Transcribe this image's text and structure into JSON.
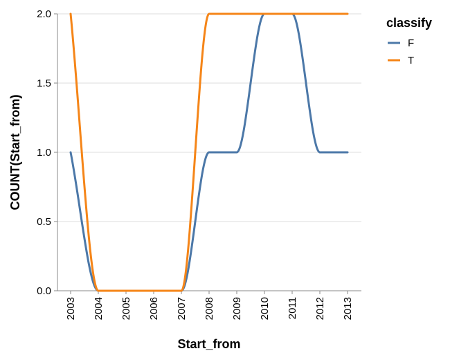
{
  "chart_data": {
    "type": "line",
    "xlabel": "Start_from",
    "ylabel": "COUNT(Start_from)",
    "x": [
      "2003",
      "2004",
      "2005",
      "2006",
      "2007",
      "2008",
      "2009",
      "2010",
      "2011",
      "2012",
      "2013"
    ],
    "ylim": [
      0,
      2
    ],
    "y_ticks": [
      "0.0",
      "0.5",
      "1.0",
      "1.5",
      "2.0"
    ],
    "grid": true,
    "interpolation": "monotone",
    "legend": {
      "title": "classify",
      "position": "top-right"
    },
    "series": [
      {
        "name": "F",
        "color": "#4c78a8",
        "values": [
          1,
          0,
          0,
          0,
          0,
          1,
          1,
          2,
          2,
          1,
          1
        ]
      },
      {
        "name": "T",
        "color": "#f58518",
        "values": [
          2,
          0,
          0,
          0,
          0,
          2,
          2,
          2,
          2,
          2,
          2
        ]
      }
    ]
  }
}
